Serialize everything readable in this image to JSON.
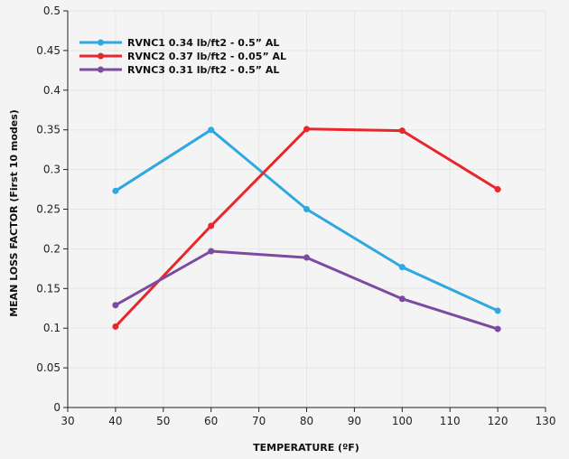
{
  "chart_data": {
    "type": "line",
    "title": "",
    "xlabel": "TEMPERATURE (ºF)",
    "ylabel": "MEAN LOSS FACTOR (First 10 modes)",
    "xlim": [
      30,
      130
    ],
    "ylim": [
      0,
      0.5
    ],
    "xticks": [
      "30",
      "40",
      "50",
      "60",
      "70",
      "80",
      "90",
      "100",
      "110",
      "120",
      "130"
    ],
    "yticks": [
      "0",
      "0.05",
      "0.1",
      "0.15",
      "0.2",
      "0.25",
      "0.3",
      "0.35",
      "0.4",
      "0.45",
      "0.5"
    ],
    "grid": true,
    "legend_position": "top-left",
    "series": [
      {
        "name": "RVNC1 0.34 lb/ft2 - 0.5” AL",
        "color": "#2fa8e0",
        "x": [
          40,
          60,
          80,
          100,
          120
        ],
        "y": [
          0.273,
          0.35,
          0.25,
          0.177,
          0.122
        ]
      },
      {
        "name": "RVNC2 0.37 lb/ft2 - 0.05” AL",
        "color": "#e8262b",
        "x": [
          40,
          60,
          80,
          100,
          120
        ],
        "y": [
          0.102,
          0.229,
          0.351,
          0.349,
          0.275
        ]
      },
      {
        "name": "RVNC3 0.31 lb/ft2 - 0.5” AL",
        "color": "#7b4aa1",
        "x": [
          40,
          60,
          80,
          100,
          120
        ],
        "y": [
          0.129,
          0.197,
          0.189,
          0.137,
          0.099
        ]
      }
    ]
  }
}
